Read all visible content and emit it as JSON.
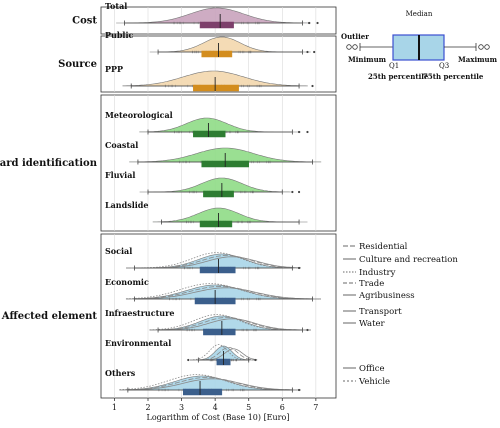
{
  "chart_data": {
    "type": "raincloud",
    "xlabel": "Logarithm of Cost (Base 10) [Euro]",
    "xlim": [
      0.6,
      7.6
    ],
    "xticks": [
      1,
      2,
      3,
      4,
      5,
      6,
      7
    ],
    "groups": [
      {
        "label": "Cost",
        "rows": [
          {
            "label": "Total",
            "color": "#c9a3bd",
            "box": "#7d3f6b",
            "q1": 3.55,
            "median": 4.15,
            "q3": 4.55,
            "wmin": 1.3,
            "wmax": 6.6,
            "kde": {
              "mu": 4.05,
              "sigma": 0.8
            },
            "outliers": [
              6.8,
              7.05
            ]
          }
        ]
      },
      {
        "label": "Source",
        "rows": [
          {
            "label": "Public",
            "color": "#f3d7ad",
            "box": "#d38d1e",
            "q1": 3.6,
            "median": 4.1,
            "q3": 4.5,
            "wmin": 2.3,
            "wmax": 6.6,
            "kde": {
              "mu": 4.2,
              "sigma": 0.55
            },
            "outliers": [
              6.75,
              6.95
            ]
          },
          {
            "label": "PPP",
            "color": "#f3d7ad",
            "box": "#d38d1e",
            "q1": 3.35,
            "median": 4.0,
            "q3": 4.7,
            "wmin": 1.5,
            "wmax": 6.5,
            "kde": {
              "mu": 3.95,
              "sigma": 0.9
            },
            "outliers": [
              6.9
            ]
          }
        ]
      },
      {
        "label": "Hazard identification",
        "rows": [
          {
            "label": "Meteorological",
            "color": "#8fdb86",
            "box": "#2e7d32",
            "q1": 3.35,
            "median": 3.8,
            "q3": 4.3,
            "wmin": 2.0,
            "wmax": 6.3,
            "kde": {
              "mu": 3.75,
              "sigma": 0.6
            },
            "outliers": [
              6.5,
              6.75
            ]
          },
          {
            "label": "Coastal",
            "color": "#8fdb86",
            "box": "#2e7d32",
            "q1": 3.6,
            "median": 4.3,
            "q3": 5.0,
            "wmin": 1.7,
            "wmax": 6.9,
            "kde": {
              "mu": 4.3,
              "sigma": 0.85
            },
            "outliers": []
          },
          {
            "label": "Fluvial",
            "color": "#8fdb86",
            "box": "#2e7d32",
            "q1": 3.65,
            "median": 4.2,
            "q3": 4.55,
            "wmin": 2.0,
            "wmax": 6.0,
            "kde": {
              "mu": 4.2,
              "sigma": 0.6
            },
            "outliers": [
              6.3,
              6.5
            ]
          },
          {
            "label": "Landslide",
            "color": "#8fdb86",
            "box": "#2e7d32",
            "q1": 3.55,
            "median": 4.1,
            "q3": 4.5,
            "wmin": 2.4,
            "wmax": 6.5,
            "kde": {
              "mu": 4.1,
              "sigma": 0.6
            },
            "outliers": []
          }
        ]
      },
      {
        "label": "Affected element",
        "rows": [
          {
            "label": "Social",
            "color": "#a8d5e8",
            "box": "#3b5f8c",
            "q1": 3.55,
            "median": 4.1,
            "q3": 4.6,
            "wmin": 1.6,
            "wmax": 6.3,
            "kde": {
              "mu": 4.2,
              "sigma": 0.7
            },
            "outliers": [
              6.5
            ]
          },
          {
            "label": "Economic",
            "color": "#a8d5e8",
            "box": "#3b5f8c",
            "q1": 3.4,
            "median": 4.0,
            "q3": 4.6,
            "wmin": 1.6,
            "wmax": 6.9,
            "kde": {
              "mu": 4.0,
              "sigma": 0.85
            },
            "outliers": []
          },
          {
            "label": "Infraestructure",
            "color": "#a8d5e8",
            "box": "#3b5f8c",
            "q1": 3.65,
            "median": 4.2,
            "q3": 4.6,
            "wmin": 2.3,
            "wmax": 6.6,
            "kde": {
              "mu": 4.2,
              "sigma": 0.65
            },
            "outliers": [
              6.75
            ]
          },
          {
            "label": "Environmental",
            "color": "#a8d5e8",
            "box": "#3b5f8c",
            "q1": 4.05,
            "median": 4.25,
            "q3": 4.45,
            "wmin": 3.5,
            "wmax": 5.0,
            "kde": {
              "mu": 4.25,
              "sigma": 0.25
            },
            "outliers": [
              3.2,
              5.2
            ]
          },
          {
            "label": "Others",
            "color": "#a8d5e8",
            "box": "#3b5f8c",
            "q1": 3.05,
            "median": 3.55,
            "q3": 4.2,
            "wmin": 1.4,
            "wmax": 6.3,
            "kde": {
              "mu": 3.6,
              "sigma": 0.8
            },
            "outliers": [
              6.5
            ]
          }
        ]
      }
    ],
    "legend": [
      "Residential",
      "Culture and recreation",
      "Industry",
      "Trade",
      "Agribusiness",
      "Transport",
      "Water",
      "Office",
      "Vehicle"
    ],
    "boxplot_key": {
      "outlier": "Outlier",
      "minimum": "Minimum",
      "median": "Median",
      "maximum": "Maximum",
      "q1": "Q1",
      "q3": "Q3",
      "p25": "25th percentile",
      "p75": "75th percentile"
    }
  }
}
